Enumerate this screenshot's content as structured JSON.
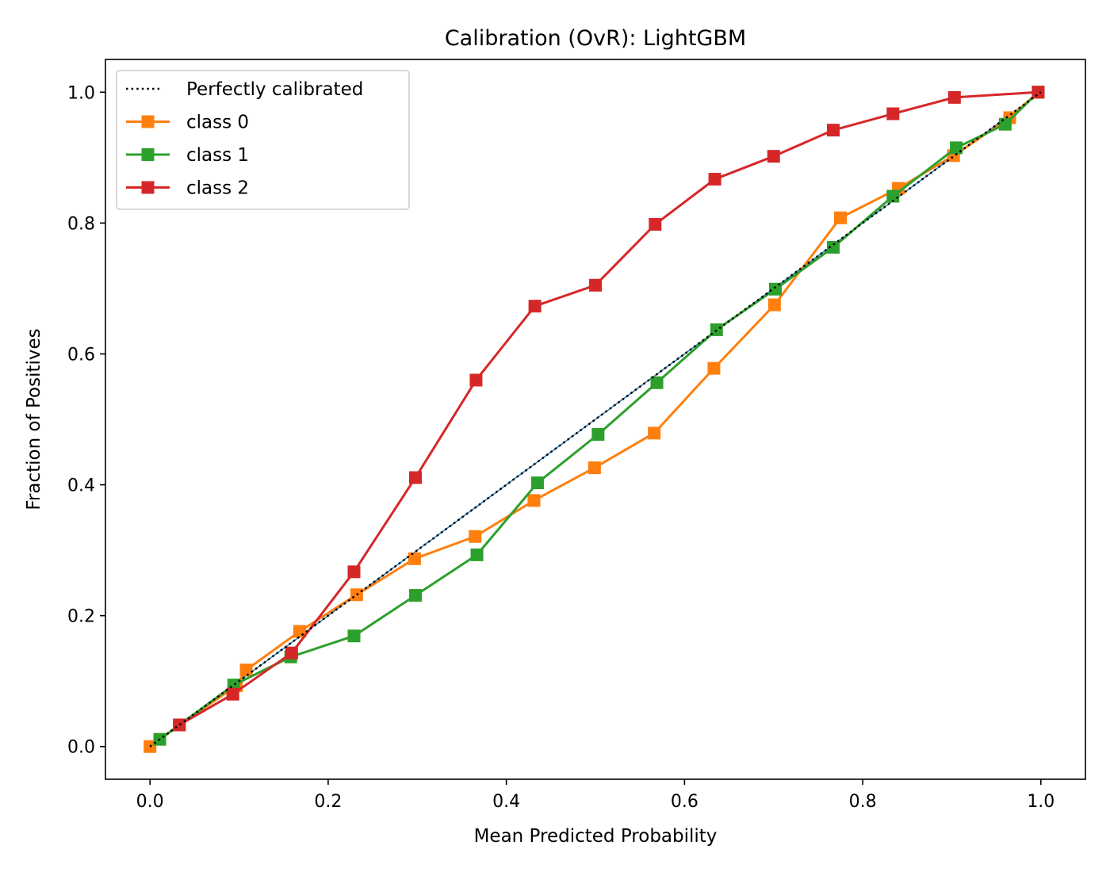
{
  "chart_data": {
    "type": "line",
    "title": "Calibration (OvR): LightGBM",
    "xlabel": "Mean Predicted Probability",
    "ylabel": "Fraction of Positives",
    "xlim": [
      -0.05,
      1.05
    ],
    "ylim": [
      -0.05,
      1.05
    ],
    "x_ticks": [
      0.0,
      0.2,
      0.4,
      0.6,
      0.8,
      1.0
    ],
    "y_ticks": [
      0.0,
      0.2,
      0.4,
      0.6,
      0.8,
      1.0
    ],
    "x_tick_labels": [
      "0.0",
      "0.2",
      "0.4",
      "0.6",
      "0.8",
      "1.0"
    ],
    "y_tick_labels": [
      "0.0",
      "0.2",
      "0.4",
      "0.6",
      "0.8",
      "1.0"
    ],
    "grid": false,
    "legend_position": "top-left",
    "reference": {
      "name": "Perfectly calibrated",
      "x": [
        0,
        1
      ],
      "y": [
        0,
        1
      ],
      "color": "#000000",
      "style": "dotted"
    },
    "series": [
      {
        "name": "class 0",
        "color": "#ff7f0e",
        "marker": "square",
        "x": [
          0.0,
          0.033,
          0.097,
          0.108,
          0.168,
          0.232,
          0.297,
          0.365,
          0.431,
          0.499,
          0.566,
          0.633,
          0.701,
          0.775,
          0.84,
          0.902,
          0.965,
          0.997
        ],
        "y": [
          0.0,
          0.033,
          0.093,
          0.117,
          0.176,
          0.232,
          0.287,
          0.321,
          0.376,
          0.426,
          0.479,
          0.578,
          0.675,
          0.808,
          0.853,
          0.903,
          0.961,
          1.0
        ]
      },
      {
        "name": "class 1",
        "color": "#2ca02c",
        "marker": "square",
        "x": [
          0.011,
          0.033,
          0.094,
          0.158,
          0.229,
          0.298,
          0.367,
          0.435,
          0.503,
          0.569,
          0.636,
          0.702,
          0.767,
          0.834,
          0.905,
          0.96,
          0.997
        ],
        "y": [
          0.011,
          0.033,
          0.094,
          0.137,
          0.169,
          0.231,
          0.293,
          0.403,
          0.477,
          0.556,
          0.637,
          0.699,
          0.763,
          0.841,
          0.915,
          0.951,
          1.0
        ]
      },
      {
        "name": "class 2",
        "color": "#d62728",
        "marker": "square",
        "x": [
          0.033,
          0.093,
          0.159,
          0.229,
          0.298,
          0.366,
          0.432,
          0.5,
          0.567,
          0.634,
          0.7,
          0.767,
          0.834,
          0.903,
          0.997
        ],
        "y": [
          0.033,
          0.08,
          0.143,
          0.267,
          0.411,
          0.56,
          0.673,
          0.705,
          0.798,
          0.867,
          0.902,
          0.942,
          0.967,
          0.992,
          1.0
        ]
      }
    ]
  }
}
